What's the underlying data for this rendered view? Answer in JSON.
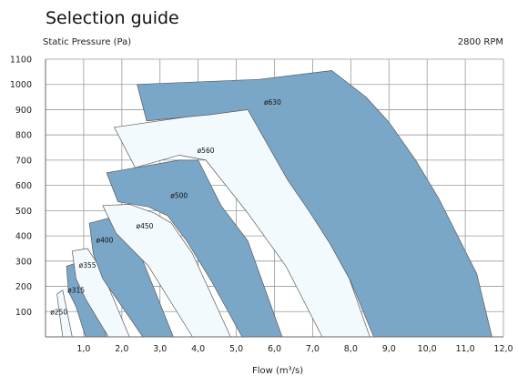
{
  "chart_data": {
    "type": "area",
    "title": "Selection guide",
    "ylabel": "Static Pressure (Pa)",
    "xlabel": "Flow (m³/s)",
    "note": "2800 RPM",
    "xlim": [
      0,
      12
    ],
    "ylim": [
      0,
      1100
    ],
    "xticks": [
      "1,0",
      "2,0",
      "3,0",
      "4,0",
      "5,0",
      "6,0",
      "7,0",
      "8,0",
      "9,0",
      "10,0",
      "11,0",
      "12,0"
    ],
    "yticks": [
      "100",
      "200",
      "300",
      "400",
      "500",
      "600",
      "700",
      "800",
      "900",
      "1000",
      "1100"
    ],
    "grid": true,
    "colors": {
      "fill_dark": "#7aa6c8",
      "fill_light": "#f2fafd",
      "stroke": "#5a5a5a",
      "grid": "#9a9a9a"
    },
    "series": [
      {
        "name": "ø250",
        "style": "light",
        "points": [
          [
            0.3,
            170
          ],
          [
            0.45,
            185
          ],
          [
            0.7,
            0
          ],
          [
            0.45,
            0
          ],
          [
            0.35,
            110
          ]
        ],
        "label_at": [
          0.35,
          100
        ]
      },
      {
        "name": "ø315",
        "style": "dark",
        "points": [
          [
            0.55,
            280
          ],
          [
            0.95,
            300
          ],
          [
            1.1,
            240
          ],
          [
            1.6,
            0
          ],
          [
            1.05,
            0
          ],
          [
            0.8,
            120
          ],
          [
            0.6,
            180
          ]
        ],
        "label_at": [
          0.8,
          185
        ]
      },
      {
        "name": "ø355",
        "style": "light",
        "points": [
          [
            0.7,
            340
          ],
          [
            1.1,
            350
          ],
          [
            1.45,
            270
          ],
          [
            2.2,
            0
          ],
          [
            1.65,
            0
          ],
          [
            1.05,
            150
          ],
          [
            0.8,
            230
          ]
        ],
        "label_at": [
          1.1,
          285
        ]
      },
      {
        "name": "ø400",
        "style": "dark",
        "points": [
          [
            1.15,
            450
          ],
          [
            1.9,
            480
          ],
          [
            2.5,
            320
          ],
          [
            3.35,
            0
          ],
          [
            2.55,
            0
          ],
          [
            1.5,
            230
          ],
          [
            1.25,
            330
          ]
        ],
        "label_at": [
          1.55,
          385
        ]
      },
      {
        "name": "ø450",
        "style": "light",
        "points": [
          [
            1.5,
            520
          ],
          [
            2.2,
            525
          ],
          [
            2.85,
            490
          ],
          [
            3.3,
            450
          ],
          [
            3.85,
            330
          ],
          [
            4.85,
            0
          ],
          [
            3.85,
            0
          ],
          [
            2.7,
            280
          ],
          [
            1.85,
            410
          ]
        ],
        "label_at": [
          2.6,
          440
        ]
      },
      {
        "name": "ø500",
        "style": "dark",
        "points": [
          [
            1.6,
            650
          ],
          [
            3.5,
            700
          ],
          [
            4.0,
            700
          ],
          [
            4.6,
            520
          ],
          [
            5.3,
            380
          ],
          [
            6.2,
            0
          ],
          [
            5.15,
            0
          ],
          [
            4.35,
            220
          ],
          [
            3.7,
            380
          ],
          [
            3.2,
            480
          ],
          [
            2.7,
            515
          ],
          [
            1.9,
            535
          ]
        ],
        "label_at": [
          3.5,
          560
        ]
      },
      {
        "name": "ø560",
        "style": "light",
        "points": [
          [
            1.8,
            830
          ],
          [
            5.0,
            900
          ],
          [
            5.3,
            900
          ],
          [
            5.9,
            790
          ],
          [
            6.8,
            580
          ],
          [
            7.8,
            300
          ],
          [
            8.5,
            0
          ],
          [
            7.25,
            0
          ],
          [
            6.3,
            280
          ],
          [
            5.3,
            490
          ],
          [
            4.2,
            700
          ],
          [
            3.5,
            720
          ],
          [
            2.35,
            670
          ]
        ],
        "label_at": [
          4.2,
          740
        ]
      },
      {
        "name": "ø630",
        "style": "dark",
        "points": [
          [
            2.4,
            1000
          ],
          [
            5.6,
            1020
          ],
          [
            7.5,
            1055
          ],
          [
            8.4,
            950
          ],
          [
            9.0,
            850
          ],
          [
            9.7,
            700
          ],
          [
            10.3,
            550
          ],
          [
            10.8,
            400
          ],
          [
            11.3,
            250
          ],
          [
            11.7,
            0
          ],
          [
            8.6,
            0
          ],
          [
            8.0,
            220
          ],
          [
            7.45,
            370
          ],
          [
            6.9,
            500
          ],
          [
            6.35,
            620
          ],
          [
            5.3,
            900
          ],
          [
            4.3,
            880
          ],
          [
            2.65,
            855
          ]
        ],
        "label_at": [
          5.95,
          930
        ]
      }
    ]
  }
}
